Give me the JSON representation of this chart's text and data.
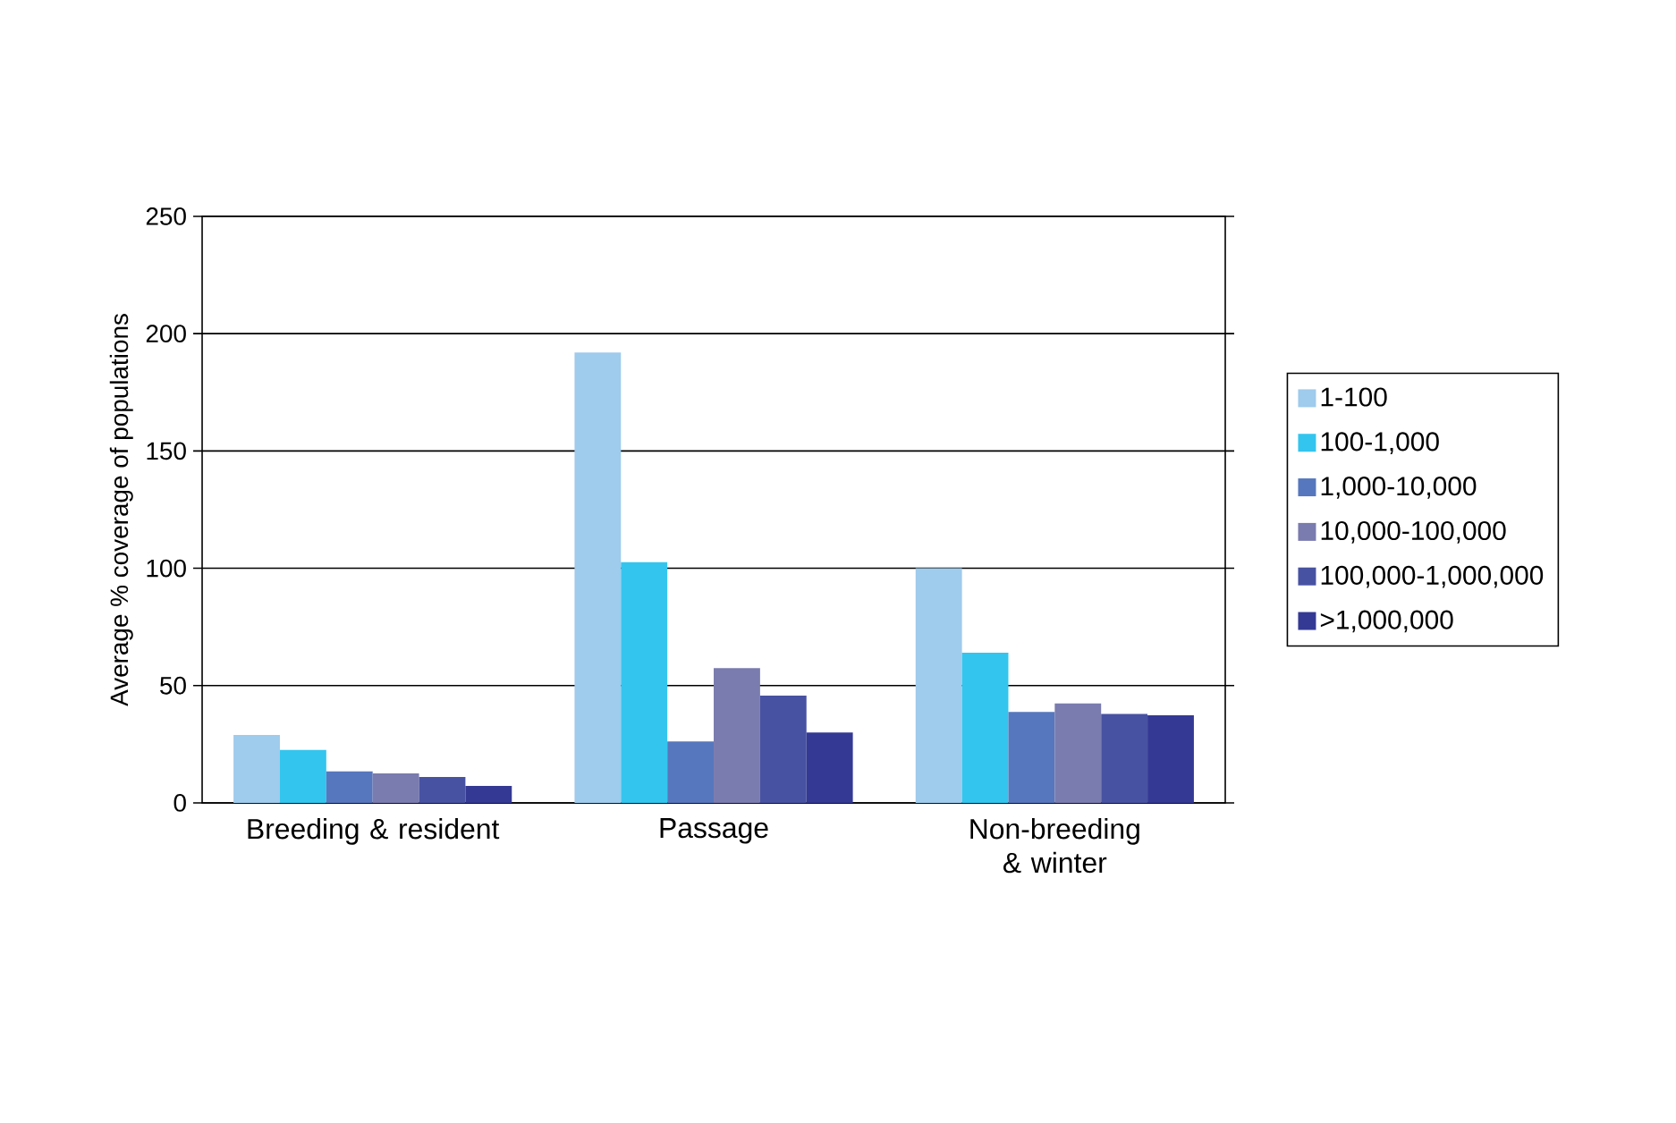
{
  "chart_data": {
    "type": "bar",
    "ylabel": "Average % coverage of populations",
    "categories": [
      "Breeding & resident",
      "Passage",
      "Non-breeding & winter"
    ],
    "series": [
      {
        "name": "1-100",
        "color": "#9fcbec",
        "values": [
          29,
          192,
          100
        ]
      },
      {
        "name": "100-1,000",
        "color": "#33c5ee",
        "values": [
          22.6,
          102.6,
          64
        ]
      },
      {
        "name": "1,000-10,000",
        "color": "#5677bd",
        "values": [
          13.4,
          26.2,
          38.8
        ]
      },
      {
        "name": "10,000-100,000",
        "color": "#7a7bae",
        "values": [
          12.6,
          57.4,
          42.4
        ]
      },
      {
        "name": "100,000-1,000,000",
        "color": "#4852a2",
        "values": [
          11,
          45.7,
          37.9
        ]
      },
      {
        "name": ">1,000,000",
        "color": "#343994",
        "values": [
          7.2,
          30,
          37.3
        ]
      }
    ],
    "ylim": [
      0,
      250
    ],
    "yticks": [
      0,
      50,
      100,
      150,
      200,
      250
    ],
    "grid": "y",
    "legend": "right"
  }
}
